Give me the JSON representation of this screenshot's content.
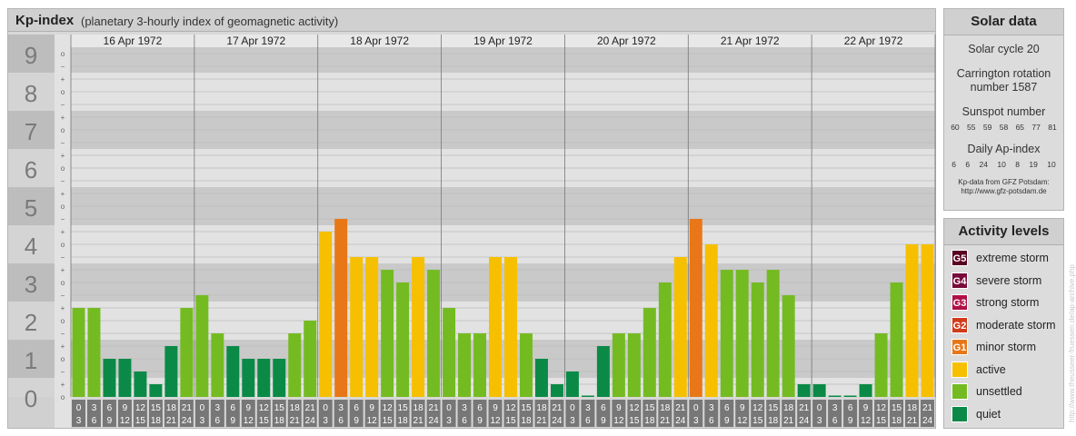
{
  "header": {
    "title": "Kp-index",
    "subtitle": "(planetary 3-hourly index of geomagnetic activity)"
  },
  "chart_data": {
    "type": "bar",
    "y_ticks": [
      "0",
      "1",
      "2",
      "3",
      "4",
      "5",
      "6",
      "7",
      "8",
      "9"
    ],
    "sub_ticks": [
      "+",
      "o",
      "−"
    ],
    "ylim": [
      0,
      9.33
    ],
    "days": [
      "16 Apr 1972",
      "17 Apr 1972",
      "18 Apr 1972",
      "19 Apr 1972",
      "20 Apr 1972",
      "21 Apr 1972",
      "22 Apr 1972"
    ],
    "interval_labels": [
      [
        "0",
        "3"
      ],
      [
        "3",
        "6"
      ],
      [
        "6",
        "9"
      ],
      [
        "9",
        "12"
      ],
      [
        "12",
        "15"
      ],
      [
        "15",
        "18"
      ],
      [
        "18",
        "21"
      ],
      [
        "21",
        "24"
      ]
    ],
    "values": [
      2.333,
      2.333,
      1.0,
      1.0,
      0.667,
      0.333,
      1.333,
      2.333,
      2.667,
      1.667,
      1.333,
      1.0,
      1.0,
      1.0,
      1.667,
      2.0,
      4.333,
      4.667,
      3.667,
      3.667,
      3.333,
      3.0,
      3.667,
      3.333,
      2.333,
      1.667,
      1.667,
      3.667,
      3.667,
      1.667,
      1.0,
      0.333,
      0.667,
      0.0,
      1.333,
      1.667,
      1.667,
      2.333,
      3.0,
      3.667,
      4.667,
      4.0,
      3.333,
      3.333,
      3.0,
      3.333,
      2.667,
      0.333,
      0.333,
      0.0,
      0.0,
      0.333,
      1.667,
      3.0,
      4.0,
      4.0
    ],
    "colors": {
      "quiet": "#0a8a46",
      "unsettled": "#74bb22",
      "active": "#f6c000",
      "minor_storm": "#e87717"
    }
  },
  "solar_data": {
    "title": "Solar data",
    "cycle": "Solar cycle 20",
    "carrington_1": "Carrington rotation",
    "carrington_2": "number 1587",
    "sunspot_title": "Sunspot number",
    "sunspot_values": [
      "60",
      "55",
      "59",
      "58",
      "65",
      "77",
      "81"
    ],
    "ap_title": "Daily Ap-index",
    "ap_values": [
      "6",
      "6",
      "24",
      "10",
      "8",
      "19",
      "10"
    ],
    "credit_1": "Kp-data from GFZ Potsdam:",
    "credit_2": "http://www.gfz-potsdam.de"
  },
  "activity_levels": {
    "title": "Activity levels",
    "items": [
      {
        "badge": "G5",
        "label": "extreme storm",
        "color": "#5a0020"
      },
      {
        "badge": "G4",
        "label": "severe storm",
        "color": "#7a0a3a"
      },
      {
        "badge": "G3",
        "label": "strong storm",
        "color": "#b01045"
      },
      {
        "badge": "G2",
        "label": "moderate storm",
        "color": "#d23a1a"
      },
      {
        "badge": "G1",
        "label": "minor storm",
        "color": "#e87717"
      },
      {
        "badge": "",
        "label": "active",
        "color": "#f6c000"
      },
      {
        "badge": "",
        "label": "unsettled",
        "color": "#74bb22"
      },
      {
        "badge": "",
        "label": "quiet",
        "color": "#0a8a46"
      }
    ]
  },
  "watermark": "http://www.theusseer-fruessen.de/ap-archive.php"
}
